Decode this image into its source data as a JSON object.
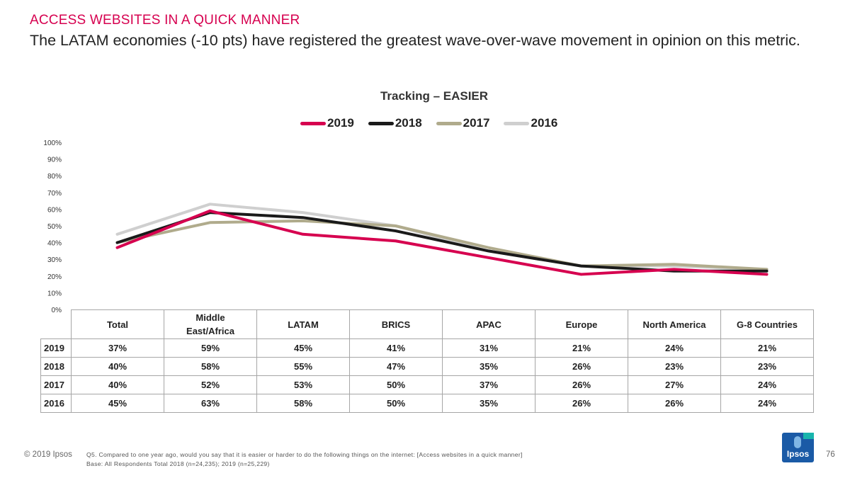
{
  "header": {
    "eyebrow": "ACCESS WEBSITES IN A QUICK MANNER",
    "headline": "The LATAM economies (-10 pts) have registered the greatest wave-over-wave movement in opinion on this metric."
  },
  "chart_data": {
    "type": "line",
    "title": "Tracking – EASIER",
    "categories": [
      "Total",
      "Middle East/Africa",
      "LATAM",
      "BRICS",
      "APAC",
      "Europe",
      "North America",
      "G-8 Countries"
    ],
    "series": [
      {
        "name": "2019",
        "color": "#d6004f",
        "values": [
          37,
          59,
          45,
          41,
          31,
          21,
          24,
          21
        ]
      },
      {
        "name": "2018",
        "color": "#1a1a1a",
        "values": [
          40,
          58,
          55,
          47,
          35,
          26,
          23,
          23
        ]
      },
      {
        "name": "2017",
        "color": "#b0ab8c",
        "values": [
          40,
          52,
          53,
          50,
          37,
          26,
          27,
          24
        ]
      },
      {
        "name": "2016",
        "color": "#cfcfcf",
        "values": [
          45,
          63,
          58,
          50,
          35,
          26,
          26,
          24
        ]
      }
    ],
    "yticks": [
      "0%",
      "10%",
      "20%",
      "30%",
      "40%",
      "50%",
      "60%",
      "70%",
      "80%",
      "90%",
      "100%"
    ],
    "ylim": [
      0,
      100
    ],
    "xlabel": "",
    "ylabel": "",
    "legend_position": "top",
    "grid": false
  },
  "table": {
    "headers": [
      "Total",
      "Middle\nEast/Africa",
      "LATAM",
      "BRICS",
      "APAC",
      "Europe",
      "North America",
      "G-8 Countries"
    ],
    "rows": [
      {
        "label": "2019",
        "cells": [
          "37%",
          "59%",
          "45%",
          "41%",
          "31%",
          "21%",
          "24%",
          "21%"
        ]
      },
      {
        "label": "2018",
        "cells": [
          "40%",
          "58%",
          "55%",
          "47%",
          "35%",
          "26%",
          "23%",
          "23%"
        ]
      },
      {
        "label": "2017",
        "cells": [
          "40%",
          "52%",
          "53%",
          "50%",
          "37%",
          "26%",
          "27%",
          "24%"
        ]
      },
      {
        "label": "2016",
        "cells": [
          "45%",
          "63%",
          "58%",
          "50%",
          "35%",
          "26%",
          "26%",
          "24%"
        ]
      }
    ]
  },
  "footer": {
    "copyright": "© 2019 Ipsos",
    "question": "Q5. Compared to one year ago, would you say that it is easier or harder to do the following things on the internet: [Access websites in a quick manner]",
    "base": "Base: All Respondents Total 2018 (n=24,235); 2019 (n=25,229)",
    "logo_text": "Ipsos",
    "page_number": "76"
  }
}
